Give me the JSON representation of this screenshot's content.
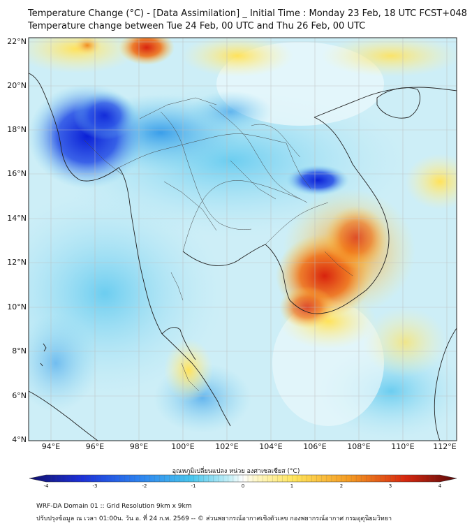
{
  "title_line1": "Temperature Change (°C) - [Data Assimilation] _ Initial Time : Monday 23 Feb, 18 UTC FCST+048",
  "title_line2": "Temperature change between Tue 24 Feb, 00 UTC and Thu 26 Feb, 00 UTC",
  "lat_labels": [
    "22°N",
    "20°N",
    "18°N",
    "16°N",
    "14°N",
    "12°N",
    "10°N",
    "8°N",
    "6°N",
    "4°N"
  ],
  "lon_labels": [
    "94°E",
    "96°E",
    "98°E",
    "100°E",
    "102°E",
    "104°E",
    "106°E",
    "108°E",
    "110°E",
    "112°E"
  ],
  "colorbar": {
    "title": "อุณหภูมิเปลี่ยนแปลง หน่วย องศาเซลเซียส (°C)",
    "ticks": [
      "-4",
      "-3",
      "-2",
      "-1",
      "0",
      "1",
      "2",
      "3",
      "4"
    ]
  },
  "footer_line1": "WRF-DA Domain 01 :: Grid Resolution 9km x 9km",
  "footer_line2": "ปรับปรุงข้อมูล ณ เวลา 01:00น. วัน อ. ที่ 24 ก.พ. 2569 -- © ส่วนพยากรณ์อากาศเชิงตัวเลข กองพยากรณ์อากาศ กรมอุตุนิยมวิทยา",
  "map_data": {
    "extent": {
      "lon": [
        93,
        112.5
      ],
      "lat": [
        4,
        22.2
      ]
    },
    "field": "temperature change (°C)",
    "notable_regions": [
      {
        "area": "Myanmar (south-west)",
        "sign": "cooling",
        "approx_value": -3.5
      },
      {
        "area": "Laos/Vietnam near 16°N 106°E",
        "sign": "cooling",
        "approx_value": -3
      },
      {
        "area": "Southern Vietnam/Cambodia",
        "sign": "warming",
        "approx_value": 3
      },
      {
        "area": "Northern Myanmar near 22°N 98°E",
        "sign": "warming",
        "approx_value": 2.5
      }
    ]
  }
}
